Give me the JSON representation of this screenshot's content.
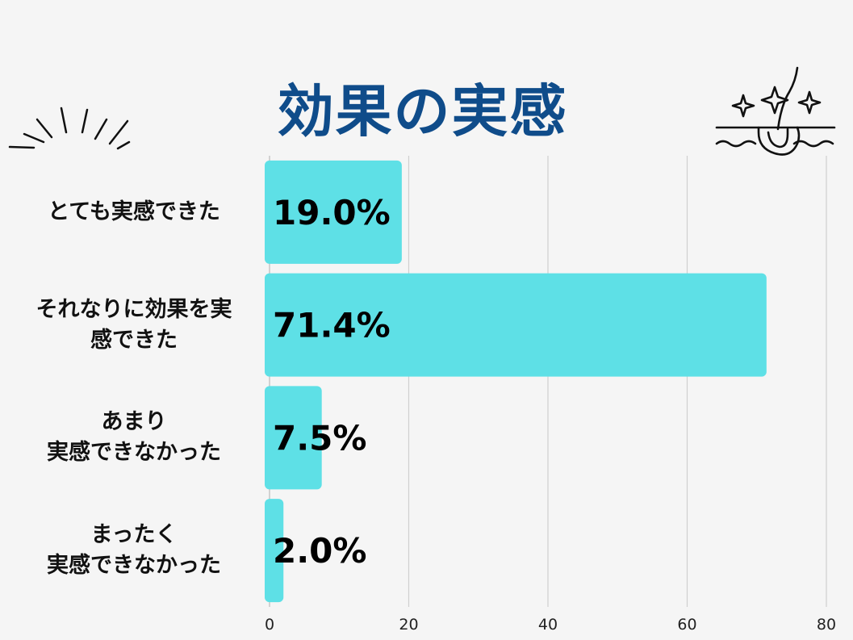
{
  "chart_data": {
    "type": "bar",
    "orientation": "horizontal",
    "title": "効果の実感",
    "categories": [
      "とても実感できた",
      "それなりに効果を実\n感できた",
      "あまり\n実感できなかった",
      "まったく\n実感できなかった"
    ],
    "values": [
      19.0,
      71.4,
      7.5,
      2.0
    ],
    "data_labels": [
      "19.0%",
      "71.4%",
      "7.5%",
      "2.0%"
    ],
    "xlim": [
      0,
      80
    ],
    "xticks": [
      "0",
      "20",
      "40",
      "60",
      "80"
    ],
    "grid": true,
    "bar_color": "#5ee0e6",
    "title_color": "#0f4c8a"
  },
  "decorations": {
    "left": "burst-lines-icon",
    "right": "hair-follicle-sparkle-icon"
  }
}
